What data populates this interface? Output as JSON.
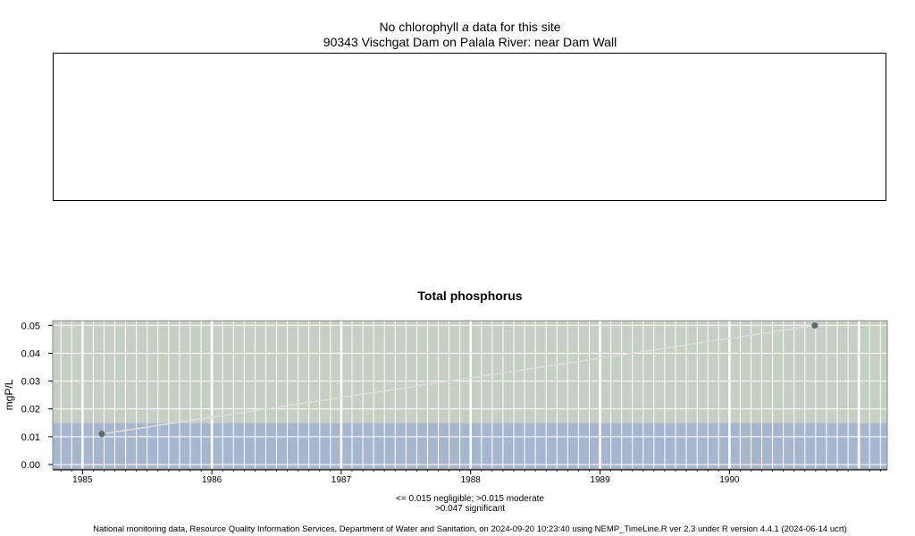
{
  "top_chart": {
    "message_prefix": "No chlorophyll",
    "message_italic": "a",
    "message_suffix": "data for this site",
    "site": "90343 Vischgat Dam on Palala River: near Dam Wall"
  },
  "chart_data": {
    "type": "scatter",
    "title": "Total phosphorus",
    "ylabel": "mgP/L",
    "xlabel": "",
    "xlim": [
      1984.77,
      1991.22
    ],
    "ylim": [
      -0.0016,
      0.0517
    ],
    "xticks": [
      1985,
      1986,
      1987,
      1988,
      1989,
      1990
    ],
    "xtick_labels": [
      "1985",
      "1986",
      "1987",
      "1988",
      "1989",
      "1990"
    ],
    "yticks": [
      0.0,
      0.01,
      0.02,
      0.03,
      0.04,
      0.05
    ],
    "ytick_labels": [
      "0.00",
      "0.01",
      "0.02",
      "0.03",
      "0.04",
      "0.05"
    ],
    "grid": true,
    "bands": [
      {
        "from": -0.0016,
        "to": 0.015,
        "color": "#a6b6cf"
      },
      {
        "from": 0.015,
        "to": 0.0517,
        "color": "#c5cfc2"
      }
    ],
    "series": [
      {
        "x": [
          1985.15,
          1990.66
        ],
        "y": [
          0.011,
          0.05
        ],
        "color": "#5e6a66",
        "line_color": "#dddddd"
      }
    ],
    "legend_lines": [
      "<= 0.015 negligible; >0.015 moderate",
      ">0.047 significant"
    ]
  },
  "footer": "National monitoring data, Resource Quality Information Services, Department of Water and Sanitation, on 2024-09-20 10:23:40 using NEMP_TimeLine.R ver 2.3 under R version 4.4.1 (2024-06-14 ucrt)"
}
